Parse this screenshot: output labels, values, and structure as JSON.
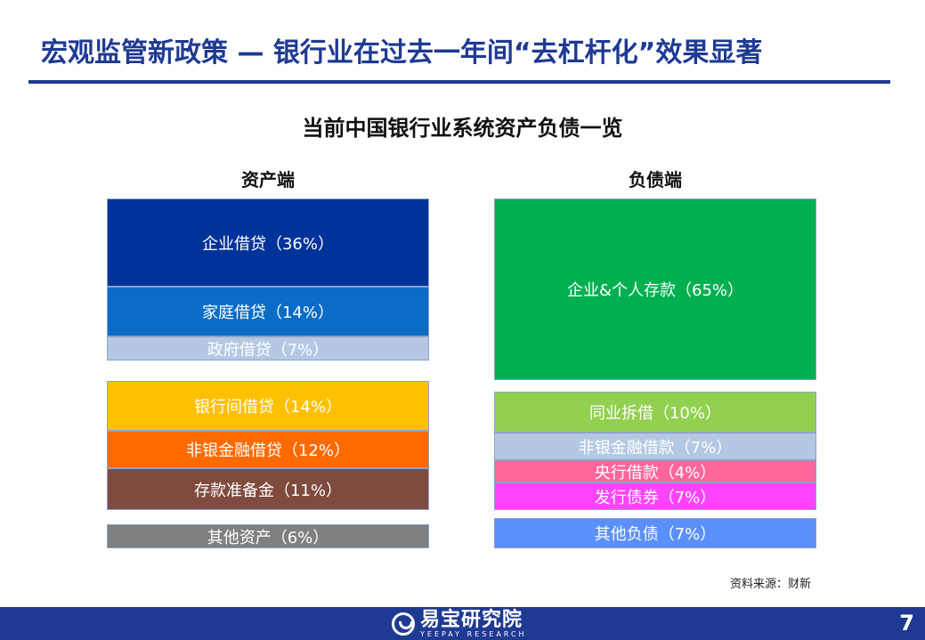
{
  "header": {
    "title": "宏观监管新政策 — 银行业在过去一年间“去杠杆化”效果显著"
  },
  "chart_data": {
    "type": "table",
    "title": "当前中国银行业系统资产负债一览",
    "columns": [
      {
        "name": "资产端",
        "groups": [
          [
            {
              "label": "企业借贷（36%）",
              "name": "企业借贷",
              "value": 36,
              "color": "#003399"
            },
            {
              "label": "家庭借贷（14%）",
              "name": "家庭借贷",
              "value": 14,
              "color": "#0b6cc7"
            },
            {
              "label": "政府借贷（7%）",
              "name": "政府借贷",
              "value": 7,
              "color": "#b4c8e4"
            }
          ],
          [
            {
              "label": "银行间借贷（14%）",
              "name": "银行间借贷",
              "value": 14,
              "color": "#ffc000"
            },
            {
              "label": "非银金融借贷（12%）",
              "name": "非银金融借贷",
              "value": 12,
              "color": "#ff6a00"
            },
            {
              "label": "存款准备金（11%）",
              "name": "存款准备金",
              "value": 11,
              "color": "#7f4b3f"
            }
          ],
          [
            {
              "label": "其他资产（6%）",
              "name": "其他资产",
              "value": 6,
              "color": "#808080"
            }
          ]
        ]
      },
      {
        "name": "负债端",
        "groups": [
          [
            {
              "label": "企业&个人存款（65%）",
              "name": "企业&个人存款",
              "value": 65,
              "color": "#00b050"
            }
          ],
          [
            {
              "label": "同业拆借（10%）",
              "name": "同业拆借",
              "value": 10,
              "color": "#92d050"
            },
            {
              "label": "非银金融借款（7%）",
              "name": "非银金融借款",
              "value": 7,
              "color": "#b4c8e4"
            },
            {
              "label": "央行借款（4%）",
              "name": "央行借款",
              "value": 4,
              "color": "#ff6699"
            },
            {
              "label": "发行债券（7%）",
              "name": "发行债券",
              "value": 7,
              "color": "#ff44ff"
            }
          ],
          [
            {
              "label": "其他负债（7%）",
              "name": "其他负债",
              "value": 7,
              "color": "#5b8ff9"
            }
          ]
        ]
      }
    ]
  },
  "source": "资料来源：财新",
  "footer": {
    "logo_cn": "易宝研究院",
    "logo_en": "YEEPAY RESEARCH",
    "page": "7"
  }
}
